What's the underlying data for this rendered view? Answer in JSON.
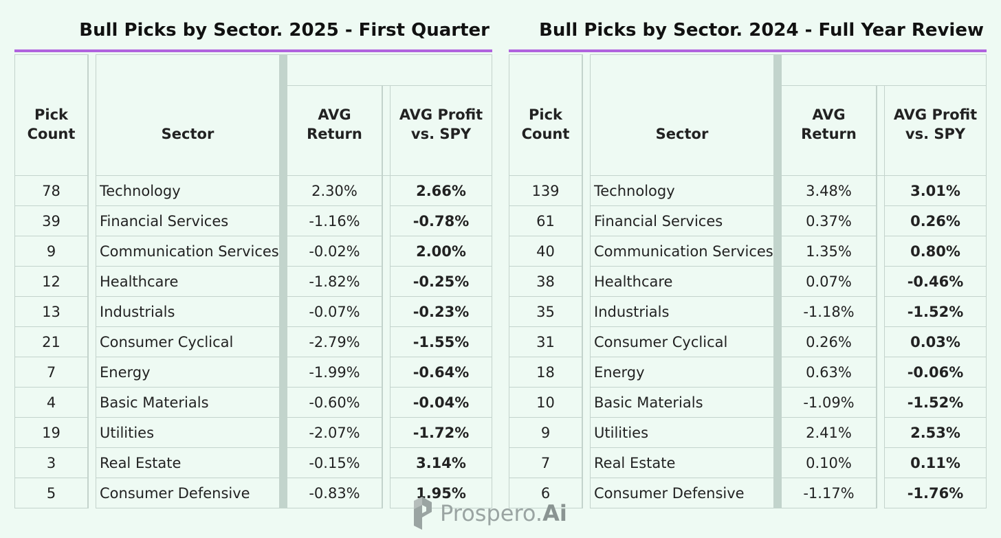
{
  "chart_data": [
    {
      "type": "table",
      "title": "Bull Picks by Sector.  2025 - First Quarter",
      "columns": [
        "Pick Count",
        "Sector",
        "AVG Return",
        "AVG Profit vs. SPY"
      ],
      "rows": [
        {
          "count": "78",
          "sector": "Technology",
          "avg_return": "2.30%",
          "avg_profit": "2.66%"
        },
        {
          "count": "39",
          "sector": "Financial Services",
          "avg_return": "-1.16%",
          "avg_profit": "-0.78%"
        },
        {
          "count": "9",
          "sector": "Communication Services",
          "avg_return": "-0.02%",
          "avg_profit": "2.00%"
        },
        {
          "count": "12",
          "sector": "Healthcare",
          "avg_return": "-1.82%",
          "avg_profit": "-0.25%"
        },
        {
          "count": "13",
          "sector": "Industrials",
          "avg_return": "-0.07%",
          "avg_profit": "-0.23%"
        },
        {
          "count": "21",
          "sector": "Consumer Cyclical",
          "avg_return": "-2.79%",
          "avg_profit": "-1.55%"
        },
        {
          "count": "7",
          "sector": "Energy",
          "avg_return": "-1.99%",
          "avg_profit": "-0.64%"
        },
        {
          "count": "4",
          "sector": "Basic Materials",
          "avg_return": "-0.60%",
          "avg_profit": "-0.04%"
        },
        {
          "count": "19",
          "sector": "Utilities",
          "avg_return": "-2.07%",
          "avg_profit": "-1.72%"
        },
        {
          "count": "3",
          "sector": "Real Estate",
          "avg_return": "-0.15%",
          "avg_profit": "3.14%"
        },
        {
          "count": "5",
          "sector": "Consumer Defensive",
          "avg_return": "-0.83%",
          "avg_profit": "1.95%"
        }
      ]
    },
    {
      "type": "table",
      "title": "Bull Picks by Sector.  2024 - Full Year Review",
      "columns": [
        "Pick Count",
        "Sector",
        "AVG Return",
        "AVG Profit vs. SPY"
      ],
      "rows": [
        {
          "count": "139",
          "sector": "Technology",
          "avg_return": "3.48%",
          "avg_profit": "3.01%"
        },
        {
          "count": "61",
          "sector": "Financial Services",
          "avg_return": "0.37%",
          "avg_profit": "0.26%"
        },
        {
          "count": "40",
          "sector": "Communication Services",
          "avg_return": "1.35%",
          "avg_profit": "0.80%"
        },
        {
          "count": "38",
          "sector": "Healthcare",
          "avg_return": "0.07%",
          "avg_profit": "-0.46%"
        },
        {
          "count": "35",
          "sector": "Industrials",
          "avg_return": "-1.18%",
          "avg_profit": "-1.52%"
        },
        {
          "count": "31",
          "sector": "Consumer Cyclical",
          "avg_return": "0.26%",
          "avg_profit": "0.03%"
        },
        {
          "count": "18",
          "sector": "Energy",
          "avg_return": "0.63%",
          "avg_profit": "-0.06%"
        },
        {
          "count": "10",
          "sector": "Basic Materials",
          "avg_return": "-1.09%",
          "avg_profit": "-1.52%"
        },
        {
          "count": "9",
          "sector": "Utilities",
          "avg_return": "2.41%",
          "avg_profit": "2.53%"
        },
        {
          "count": "7",
          "sector": "Real Estate",
          "avg_return": "0.10%",
          "avg_profit": "0.11%"
        },
        {
          "count": "6",
          "sector": "Consumer Defensive",
          "avg_return": "-1.17%",
          "avg_profit": "-1.76%"
        }
      ]
    }
  ],
  "header_lines": {
    "pick": "Pick",
    "count": "Count",
    "sector": "Sector",
    "avg": "AVG",
    "return": "Return",
    "avg_profit": "AVG Profit",
    "vs_spy": "vs. SPY"
  },
  "logo": {
    "name": "Prospero.",
    "suffix": "Ai",
    "icon": "prospero-logo-icon"
  },
  "colors": {
    "background": "#eefaf3",
    "title_rule": "#b063de",
    "grid": "#c3d3cc",
    "separator": "#c2d4cc",
    "logo": "#9aa4a2"
  }
}
